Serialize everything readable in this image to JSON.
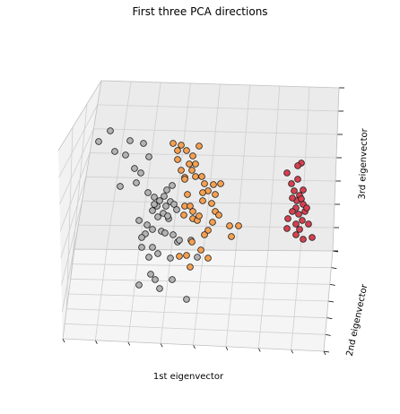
{
  "chart_data": {
    "type": "scatter",
    "projection": "3d",
    "title": "First three PCA directions",
    "xlabel": "1st eigenvector",
    "ylabel": "2nd eigenvector",
    "zlabel": "3rd eigenvector",
    "grid": true,
    "legend": "none",
    "series": [
      {
        "color": "#b3b3b3",
        "points": [
          [
            110,
            158
          ],
          [
            123,
            146
          ],
          [
            145,
            157
          ],
          [
            128,
            169
          ],
          [
            140,
            173
          ],
          [
            160,
            160
          ],
          [
            166,
            175
          ],
          [
            150,
            188
          ],
          [
            157,
            193
          ],
          [
            134,
            208
          ],
          [
            152,
            204
          ],
          [
            165,
            215
          ],
          [
            172,
            220
          ],
          [
            186,
            212
          ],
          [
            192,
            207
          ],
          [
            178,
            224
          ],
          [
            185,
            230
          ],
          [
            170,
            235
          ],
          [
            176,
            242
          ],
          [
            188,
            244
          ],
          [
            164,
            251
          ],
          [
            155,
            246
          ],
          [
            170,
            256
          ],
          [
            162,
            261
          ],
          [
            158,
            265
          ],
          [
            180,
            258
          ],
          [
            193,
            262
          ],
          [
            198,
            270
          ],
          [
            170,
            276
          ],
          [
            158,
            276
          ],
          [
            166,
            287
          ],
          [
            176,
            283
          ],
          [
            190,
            288
          ],
          [
            173,
            312
          ],
          [
            168,
            306
          ],
          [
            155,
            318
          ],
          [
            178,
            322
          ],
          [
            192,
            312
          ],
          [
            208,
            334
          ],
          [
            183,
            219
          ],
          [
            190,
            225
          ],
          [
            175,
            230
          ],
          [
            172,
            228
          ],
          [
            194,
            228
          ],
          [
            197,
            234
          ],
          [
            182,
            238
          ],
          [
            187,
            241
          ],
          [
            184,
            260
          ],
          [
            213,
            268
          ],
          [
            220,
            287
          ],
          [
            200,
            268
          ]
        ]
      },
      {
        "color": "#f5a050",
        "points": [
          [
            193,
            160
          ],
          [
            202,
            162
          ],
          [
            198,
            168
          ],
          [
            208,
            168
          ],
          [
            222,
            163
          ],
          [
            211,
            183
          ],
          [
            218,
            183
          ],
          [
            202,
            190
          ],
          [
            214,
            190
          ],
          [
            206,
            198
          ],
          [
            218,
            197
          ],
          [
            225,
            197
          ],
          [
            228,
            205
          ],
          [
            238,
            206
          ],
          [
            232,
            213
          ],
          [
            246,
            205
          ],
          [
            209,
            217
          ],
          [
            206,
            230
          ],
          [
            212,
            230
          ],
          [
            215,
            236
          ],
          [
            205,
            240
          ],
          [
            215,
            244
          ],
          [
            220,
            246
          ],
          [
            222,
            241
          ],
          [
            226,
            224
          ],
          [
            236,
            227
          ],
          [
            240,
            236
          ],
          [
            237,
            248
          ],
          [
            244,
            240
          ],
          [
            232,
            257
          ],
          [
            228,
            262
          ],
          [
            224,
            279
          ],
          [
            208,
            285
          ],
          [
            232,
            288
          ],
          [
            212,
            298
          ],
          [
            258,
            264
          ],
          [
            266,
            252
          ],
          [
            256,
            252
          ],
          [
            214,
            270
          ],
          [
            200,
            286
          ],
          [
            226,
            215
          ],
          [
            240,
            217
          ],
          [
            206,
            200
          ],
          [
            215,
            174
          ],
          [
            198,
            178
          ]
        ]
      },
      {
        "color": "#d64050",
        "points": [
          [
            320,
            193
          ],
          [
            336,
            182
          ],
          [
            332,
            185
          ],
          [
            325,
            205
          ],
          [
            328,
            213
          ],
          [
            334,
            218
          ],
          [
            331,
            224
          ],
          [
            336,
            222
          ],
          [
            330,
            232
          ],
          [
            338,
            228
          ],
          [
            326,
            236
          ],
          [
            333,
            239
          ],
          [
            340,
            236
          ],
          [
            337,
            246
          ],
          [
            321,
            244
          ],
          [
            330,
            250
          ],
          [
            334,
            256
          ],
          [
            344,
            250
          ],
          [
            320,
            255
          ],
          [
            330,
            262
          ],
          [
            338,
            267
          ],
          [
            348,
            265
          ],
          [
            332,
            200
          ],
          [
            338,
            212
          ],
          [
            342,
            232
          ],
          [
            326,
            221
          ]
        ]
      }
    ]
  }
}
